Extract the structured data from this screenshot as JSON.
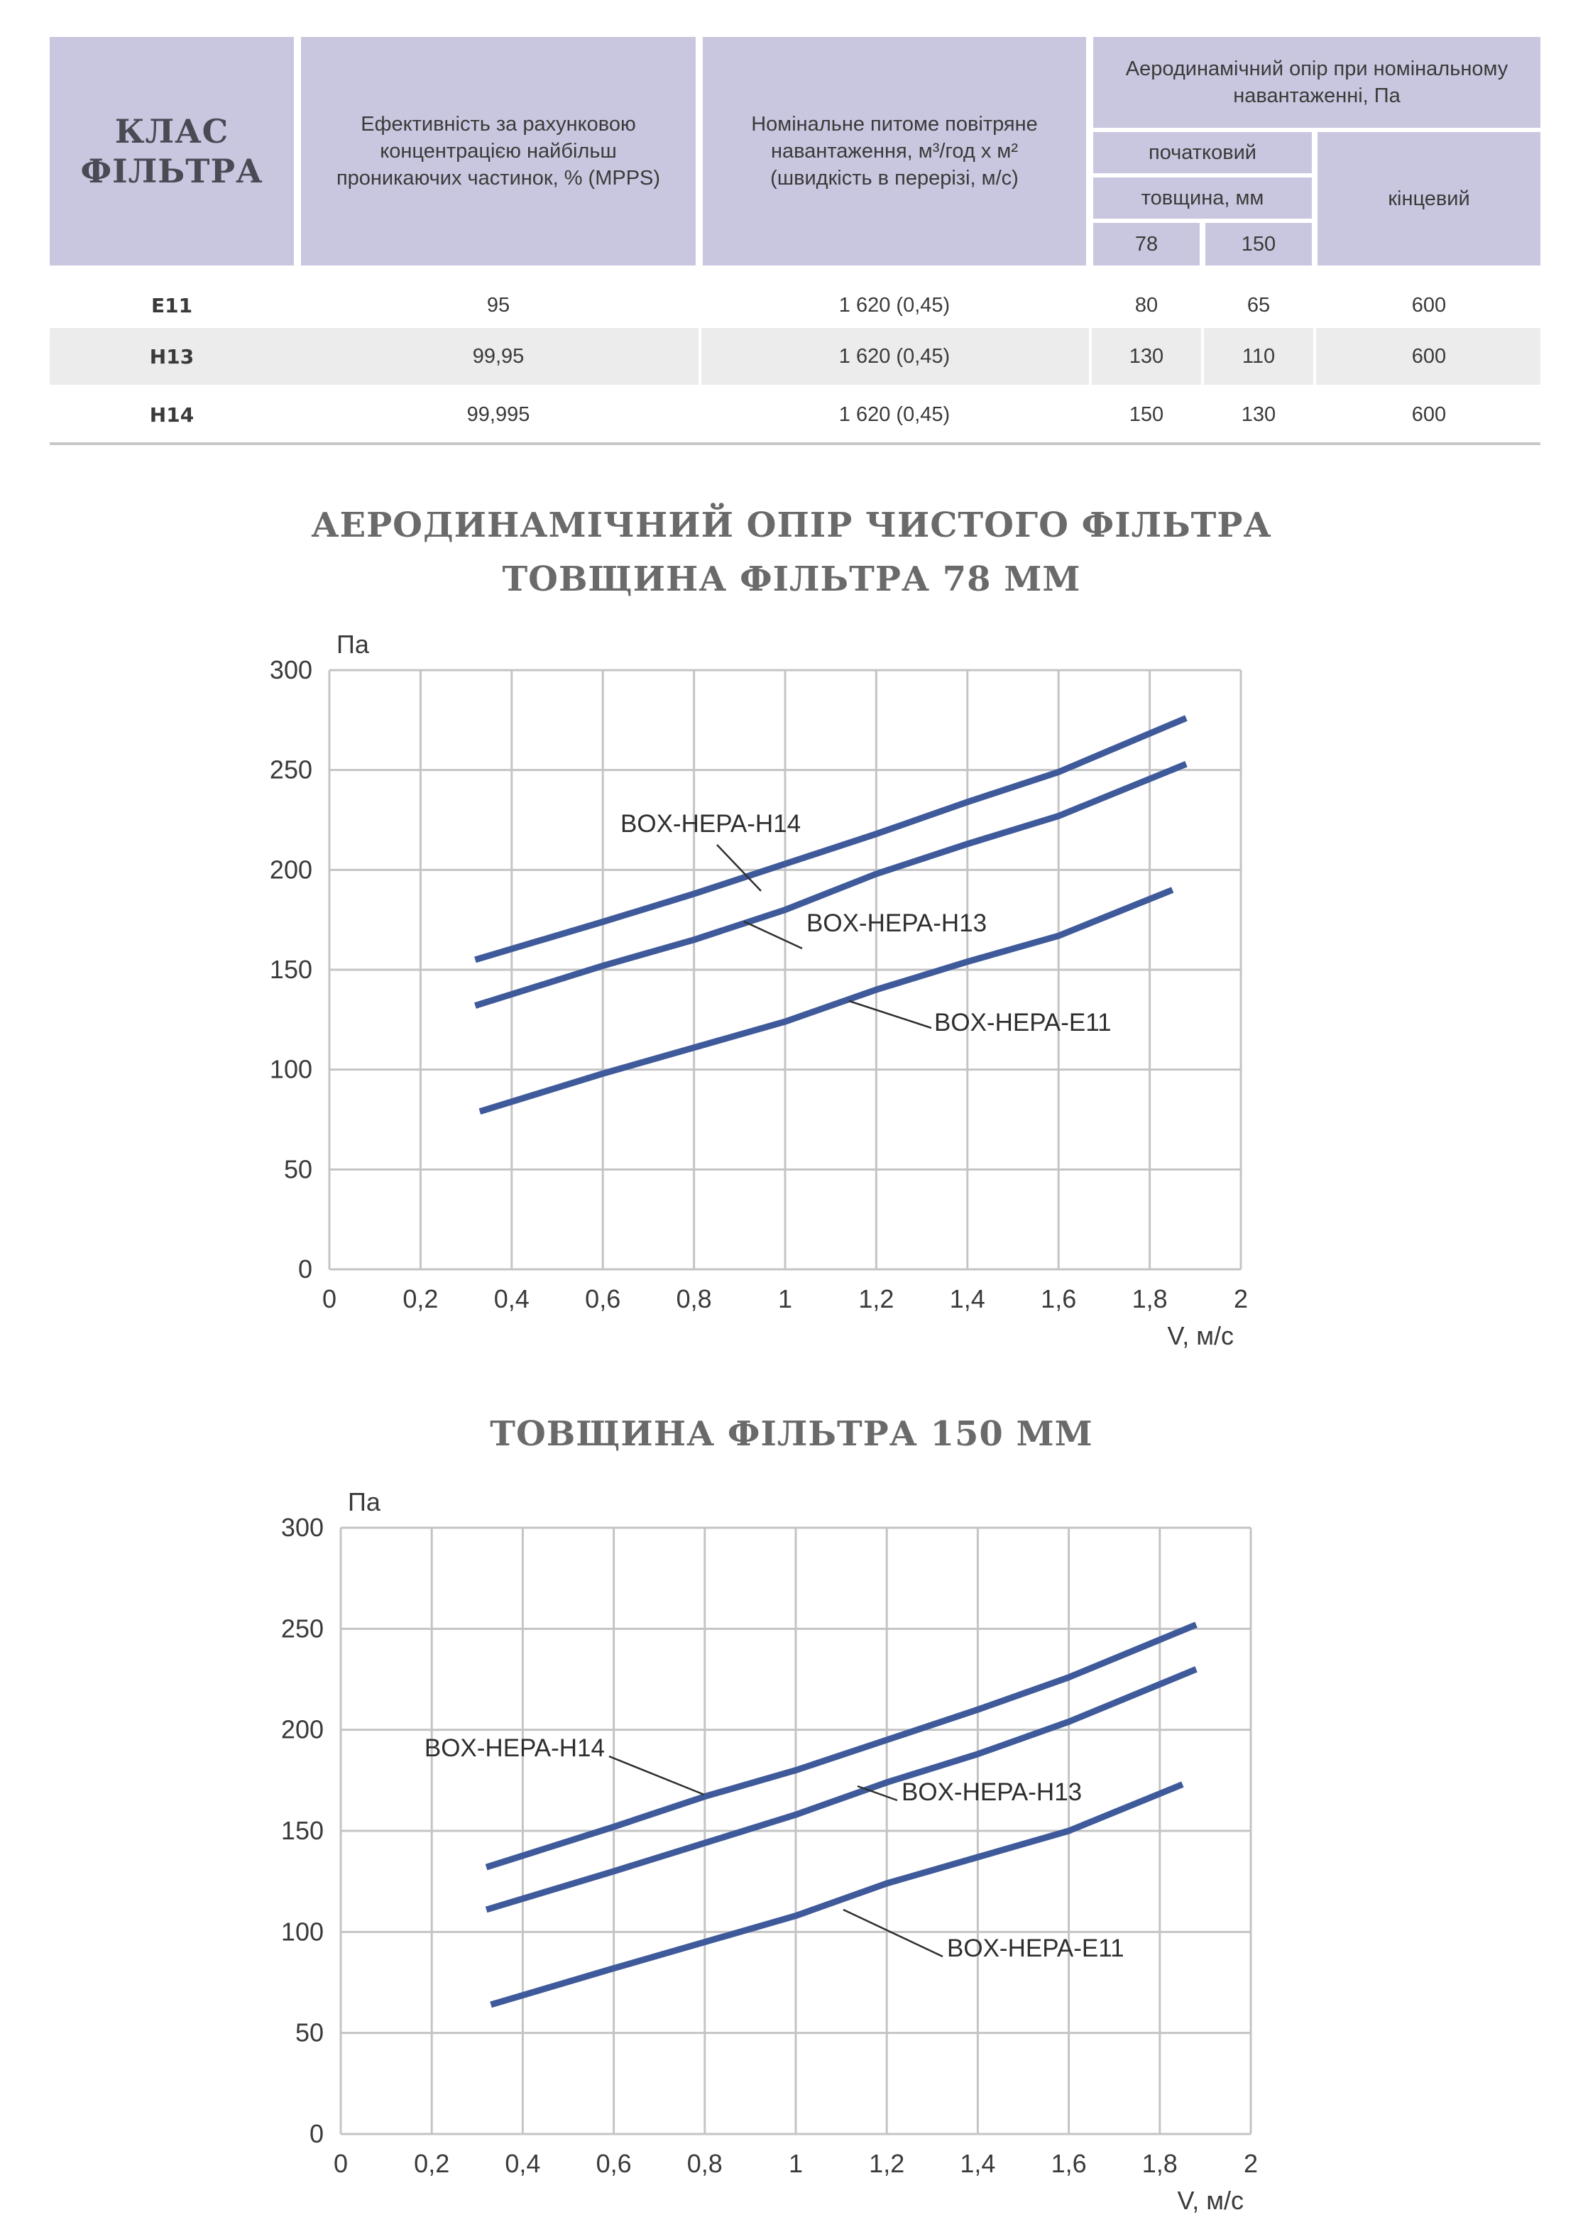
{
  "table": {
    "headers": {
      "class": "КЛАС ФІЛЬТРА",
      "efficiency": "Ефективність за рахунковою концентрацією найбільш проникаючих частинок, % (MPPS)",
      "load": "Номінальне питоме повітряне навантаження, м³/год х м² (швидкість в перерізі, м/с)",
      "resistance": "Аеродинамічний опір при номінальному навантаженні, Па",
      "initial": "початковий",
      "thickness": "товщина, мм",
      "t78": "78",
      "t150": "150",
      "final": "кінцевий"
    },
    "rows": [
      {
        "class": "E11",
        "efficiency": "95",
        "load": "1 620 (0,45)",
        "r78": "80",
        "r150": "65",
        "final": "600"
      },
      {
        "class": "H13",
        "efficiency": "99,95",
        "load": "1 620 (0,45)",
        "r78": "130",
        "r150": "110",
        "final": "600"
      },
      {
        "class": "H14",
        "efficiency": "99,995",
        "load": "1 620 (0,45)",
        "r78": "150",
        "r150": "130",
        "final": "600"
      }
    ]
  },
  "chart_data": [
    {
      "type": "line",
      "title": "АЕРОДИНАМІЧНИЙ ОПІР ЧИСТОГО ФІЛЬТРА",
      "subtitle": "ТОВЩИНА ФІЛЬТРА 78 ММ",
      "xlabel": "V, м/с",
      "ylabel": "Па",
      "xlim": [
        0,
        2
      ],
      "ylim": [
        0,
        300
      ],
      "xticks": [
        "0",
        "0,2",
        "0,4",
        "0,6",
        "0,8",
        "1",
        "1,2",
        "1,4",
        "1,6",
        "1,8",
        "2"
      ],
      "yticks": [
        "0",
        "50",
        "100",
        "150",
        "200",
        "250",
        "300"
      ],
      "grid": true,
      "color": "#3f5a9a",
      "series": [
        {
          "name": "BOX-HEPA-H14",
          "x": [
            0.32,
            0.6,
            0.8,
            1.0,
            1.2,
            1.4,
            1.6,
            1.88
          ],
          "y": [
            155,
            174,
            188,
            203,
            218,
            234,
            249,
            276
          ]
        },
        {
          "name": "BOX-HEPA-H13",
          "x": [
            0.32,
            0.6,
            0.8,
            1.0,
            1.2,
            1.4,
            1.6,
            1.88
          ],
          "y": [
            132,
            152,
            165,
            180,
            198,
            213,
            227,
            253
          ]
        },
        {
          "name": "BOX-HEPA-E11",
          "x": [
            0.33,
            0.6,
            0.8,
            1.0,
            1.2,
            1.4,
            1.6,
            1.85
          ],
          "y": [
            79,
            98,
            111,
            124,
            140,
            154,
            167,
            190
          ]
        }
      ]
    },
    {
      "type": "line",
      "title": "ТОВЩИНА ФІЛЬТРА 150 ММ",
      "xlabel": "V, м/с",
      "ylabel": "Па",
      "xlim": [
        0,
        2
      ],
      "ylim": [
        0,
        300
      ],
      "xticks": [
        "0",
        "0,2",
        "0,4",
        "0,6",
        "0,8",
        "1",
        "1,2",
        "1,4",
        "1,6",
        "1,8",
        "2"
      ],
      "yticks": [
        "0",
        "50",
        "100",
        "150",
        "200",
        "250",
        "300"
      ],
      "grid": true,
      "color": "#3f5a9a",
      "series": [
        {
          "name": "BOX-HEPA-H14",
          "x": [
            0.32,
            0.6,
            0.8,
            1.0,
            1.2,
            1.4,
            1.6,
            1.88
          ],
          "y": [
            132,
            152,
            167,
            180,
            195,
            210,
            226,
            252
          ]
        },
        {
          "name": "BOX-HEPA-H13",
          "x": [
            0.32,
            0.6,
            0.8,
            1.0,
            1.2,
            1.4,
            1.6,
            1.88
          ],
          "y": [
            111,
            130,
            144,
            158,
            174,
            188,
            204,
            230
          ]
        },
        {
          "name": "BOX-HEPA-E11",
          "x": [
            0.33,
            0.6,
            0.8,
            1.0,
            1.2,
            1.4,
            1.6,
            1.85
          ],
          "y": [
            64,
            82,
            95,
            108,
            124,
            137,
            150,
            173
          ]
        }
      ]
    }
  ]
}
